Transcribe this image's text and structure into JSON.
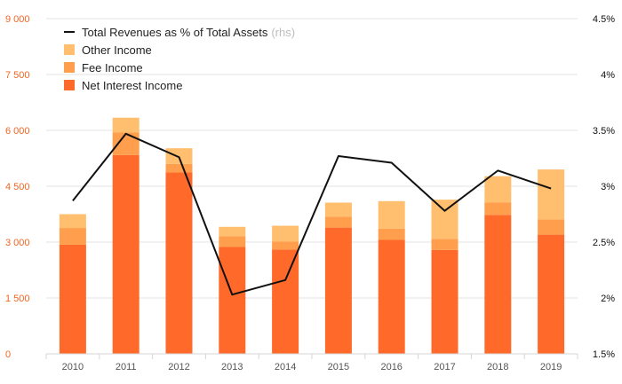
{
  "chart_data": {
    "type": "bar",
    "categories": [
      "2010",
      "2011",
      "2012",
      "2013",
      "2014",
      "2015",
      "2016",
      "2017",
      "2018",
      "2019"
    ],
    "series": [
      {
        "name": "Net Interest Income",
        "type": "bar",
        "axis": "left",
        "color": "#ff6a2b",
        "values": [
          2930,
          5340,
          4870,
          2870,
          2800,
          3390,
          3060,
          2790,
          3730,
          3200
        ]
      },
      {
        "name": "Fee Income",
        "type": "bar",
        "axis": "left",
        "color": "#ff9f4d",
        "values": [
          450,
          600,
          230,
          290,
          220,
          290,
          300,
          300,
          330,
          410
        ]
      },
      {
        "name": "Other Income",
        "type": "bar",
        "axis": "left",
        "color": "#ffbf6e",
        "values": [
          370,
          400,
          420,
          250,
          420,
          380,
          740,
          1050,
          710,
          1340
        ]
      },
      {
        "name": "Total Revenues as % of Total Assets",
        "type": "line",
        "axis": "right",
        "color": "#111111",
        "values": [
          2.87,
          3.47,
          3.26,
          2.03,
          2.16,
          3.27,
          3.21,
          2.78,
          3.14,
          2.98
        ]
      }
    ],
    "left_axis": {
      "min": 0,
      "max": 9000,
      "ticks": [
        "0",
        "1 500",
        "3 000",
        "4 500",
        "6 000",
        "7 500",
        "9 000"
      ],
      "tick_values": [
        0,
        1500,
        3000,
        4500,
        6000,
        7500,
        9000
      ],
      "color": "#f26522"
    },
    "right_axis": {
      "min": 1.5,
      "max": 4.5,
      "ticks": [
        "1.5%",
        "2%",
        "2.5%",
        "3%",
        "3.5%",
        "4%",
        "4.5%"
      ],
      "tick_values": [
        1.5,
        2,
        2.5,
        3,
        3.5,
        4,
        4.5
      ],
      "color": "#111111"
    },
    "legend": {
      "position": "top-left",
      "line_label": "Total Revenues as % of Total Assets",
      "line_suffix": "(rhs)",
      "other": "Other Income",
      "fee": "Fee Income",
      "nii": "Net Interest Income"
    }
  }
}
